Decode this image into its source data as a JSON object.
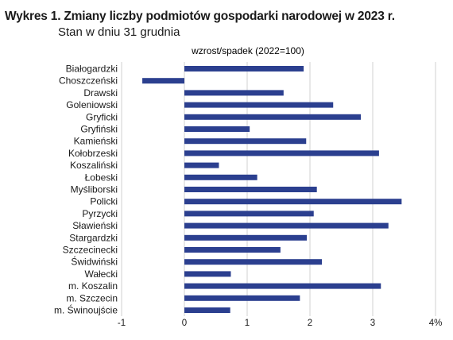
{
  "header": {
    "title": "Wykres 1. Zmiany liczby podmiotów gospodarki narodowej w 2023 r.",
    "subtitle": "Stan w dniu 31 grudnia"
  },
  "colors": {
    "bar": "#2b3f8f",
    "grid": "#d0d0d0",
    "text": "#1a1a1a"
  },
  "chart_data": {
    "type": "bar",
    "orientation": "horizontal",
    "title": "Wykres 1. Zmiany liczby podmiotów gospodarki narodowej w 2023 r.",
    "subtitle": "Stan w dniu 31 grudnia",
    "series_label": "wzrost/spadek (2022=100)",
    "categories": [
      "Białogardzki",
      "Choszczeński",
      "Drawski",
      "Goleniowski",
      "Gryficki",
      "Gryfiński",
      "Kamieński",
      "Kołobrzeski",
      "Koszaliński",
      "Łobeski",
      "Myśliborski",
      "Policki",
      "Pyrzycki",
      "Sławieński",
      "Stargardzki",
      "Szczecinecki",
      "Świdwiński",
      "Wałecki",
      "m. Koszalin",
      "m. Szczecin",
      "m. Świnoujście"
    ],
    "values": [
      1.9,
      -0.67,
      1.58,
      2.37,
      2.81,
      1.04,
      1.94,
      3.1,
      0.55,
      1.16,
      2.11,
      3.46,
      2.06,
      3.25,
      1.95,
      1.53,
      2.19,
      0.74,
      3.13,
      1.84,
      0.73
    ],
    "xlim": [
      -1,
      4
    ],
    "x_ticks": [
      "-1",
      "0",
      "1",
      "2",
      "3",
      "4%"
    ],
    "grid": "vertical",
    "legend": "none"
  }
}
